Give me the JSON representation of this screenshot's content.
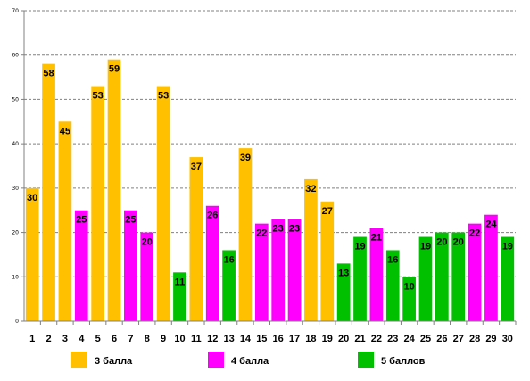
{
  "chart_data": {
    "type": "bar",
    "categories": [
      "1",
      "2",
      "3",
      "4",
      "5",
      "6",
      "7",
      "8",
      "9",
      "10",
      "11",
      "12",
      "13",
      "14",
      "15",
      "16",
      "17",
      "18",
      "19",
      "20",
      "21",
      "22",
      "23",
      "24",
      "25",
      "26",
      "27",
      "28",
      "29",
      "30"
    ],
    "values": [
      30,
      58,
      45,
      25,
      53,
      59,
      25,
      20,
      53,
      11,
      37,
      26,
      16,
      39,
      22,
      23,
      23,
      32,
      27,
      13,
      19,
      21,
      16,
      10,
      19,
      20,
      20,
      22,
      24,
      19
    ],
    "groups": [
      "g3",
      "g3",
      "g3",
      "g4",
      "g3",
      "g3",
      "g4",
      "g4",
      "g3",
      "g5",
      "g3",
      "g4",
      "g5",
      "g3",
      "g4",
      "g4",
      "g4",
      "g3",
      "g3",
      "g5",
      "g5",
      "g4",
      "g5",
      "g5",
      "g5",
      "g5",
      "g5",
      "g4",
      "g4",
      "g5"
    ],
    "ylim": [
      0,
      70
    ],
    "yticks": [
      0,
      10,
      20,
      30,
      40,
      50,
      60,
      70
    ],
    "grid": true,
    "legend_position": "bottom",
    "legend": [
      {
        "key": "g3",
        "label": "3 балла",
        "color": "#FFC000"
      },
      {
        "key": "g4",
        "label": "4 балла",
        "color": "#FF00FF"
      },
      {
        "key": "g5",
        "label": "5 баллов",
        "color": "#00C000"
      }
    ]
  }
}
